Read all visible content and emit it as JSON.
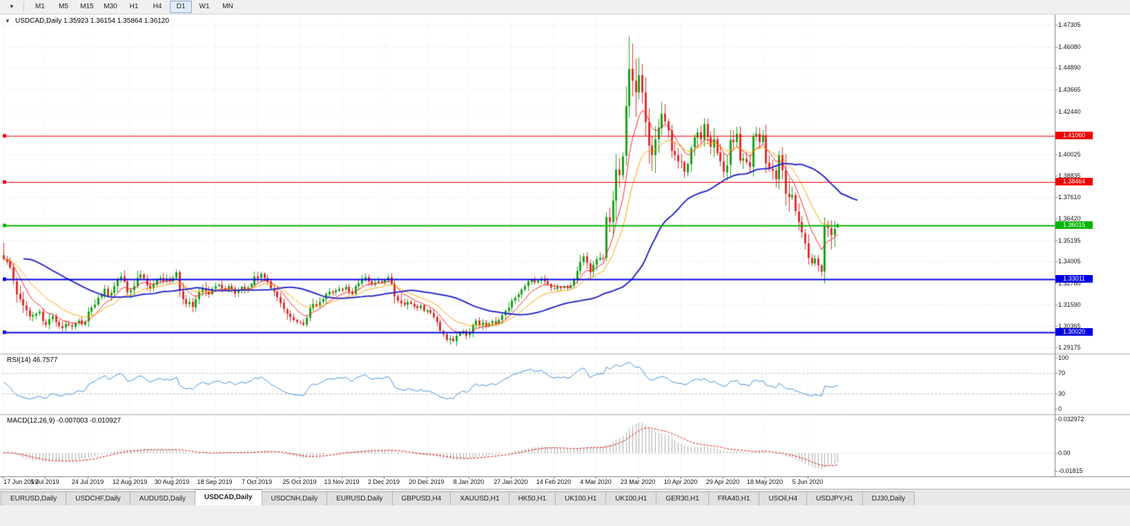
{
  "toolbar": {
    "chart_menu_icon": "▼",
    "timeframes": [
      {
        "label": "M1",
        "active": false
      },
      {
        "label": "M5",
        "active": false
      },
      {
        "label": "M15",
        "active": false
      },
      {
        "label": "M30",
        "active": false
      },
      {
        "label": "H1",
        "active": false
      },
      {
        "label": "H4",
        "active": false
      },
      {
        "label": "D1",
        "active": true
      },
      {
        "label": "W1",
        "active": false
      },
      {
        "label": "MN",
        "active": false
      }
    ]
  },
  "chart": {
    "dropdown_icon": "▼",
    "ohlc_label": "USDCAD,Daily 1.35923 1.36154 1.35864 1.36120",
    "price_ticks": [
      "1.47305",
      "1.46080",
      "1.44890",
      "1.43665",
      "1.42440",
      "1.40025",
      "1.38835",
      "1.37610",
      "1.36420",
      "1.35195",
      "1.34005",
      "1.32780",
      "1.31590",
      "1.30365",
      "1.29175"
    ],
    "date_labels": [
      "17 Jun 2019",
      "5 Jul 2019",
      "24 Jul 2019",
      "12 Aug 2019",
      "30 Aug 2019",
      "18 Sep 2019",
      "7 Oct 2019",
      "25 Oct 2019",
      "13 Nov 2019",
      "2 Dec 2019",
      "20 Dec 2019",
      "8 Jan 2020",
      "27 Jan 2020",
      "14 Feb 2020",
      "4 Mar 2020",
      "23 Mar 2020",
      "10 Apr 2020",
      "29 Apr 2020",
      "18 May 2020",
      "5 Jun 2020"
    ],
    "badges": [
      {
        "text": "1.41060",
        "color": "#f20000"
      },
      {
        "text": "1.38464",
        "color": "#f20000"
      },
      {
        "text": "1.36015",
        "color": "#00b400"
      },
      {
        "text": "1.33011",
        "color": "#0000e6"
      },
      {
        "text": "1.30020",
        "color": "#0000e6"
      }
    ]
  },
  "rsi_panel": {
    "label": "RSI(14) 46.7577",
    "ticks": [
      {
        "text": "100",
        "value": 100
      },
      {
        "text": "70",
        "value": 70
      },
      {
        "text": "30",
        "value": 30
      },
      {
        "text": "0",
        "value": 0
      }
    ]
  },
  "macd_panel": {
    "label": "MACD(12,26,9) -0.007003 -0.010927",
    "ticks": [
      {
        "text": "0.032972",
        "value": 0.032972
      },
      {
        "text": "0.00",
        "value": 0
      },
      {
        "text": "-0.01815",
        "value": -0.01815
      }
    ]
  },
  "chart_data": {
    "type": "candlestick",
    "symbol": "USDCAD",
    "timeframe": "Daily",
    "current_ohlc": {
      "open": 1.35923,
      "high": 1.36154,
      "low": 1.35864,
      "close": 1.3612
    },
    "y_axis_range": [
      1.28865,
      1.47615
    ],
    "candle_up_color": "#18a418",
    "candle_down_color": "#e03030",
    "closes": [
      1.3415,
      1.34,
      1.3365,
      1.329,
      1.3218,
      1.3188,
      1.3152,
      1.3125,
      1.3091,
      1.3098,
      1.3108,
      1.3118,
      1.3062,
      1.3046,
      1.3078,
      1.3092,
      1.306,
      1.3038,
      1.3028,
      1.3048,
      1.3042,
      1.3035,
      1.3055,
      1.3068,
      1.3048,
      1.3062,
      1.3118,
      1.3142,
      1.3158,
      1.3198,
      1.3215,
      1.3248,
      1.3208,
      1.3225,
      1.3262,
      1.33,
      1.3318,
      1.3288,
      1.3225,
      1.3238,
      1.3262,
      1.331,
      1.3328,
      1.3305,
      1.3268,
      1.3248,
      1.3272,
      1.3298,
      1.331,
      1.329,
      1.3305,
      1.3292,
      1.331,
      1.334,
      1.3235,
      1.3188,
      1.3162,
      1.3172,
      1.3145,
      1.319,
      1.3228,
      1.3252,
      1.3232,
      1.3218,
      1.3248,
      1.3262,
      1.327,
      1.3252,
      1.3235,
      1.3262,
      1.3248,
      1.3222,
      1.3238,
      1.3258,
      1.3242,
      1.3255,
      1.3272,
      1.3318,
      1.3308,
      1.3332,
      1.331,
      1.3288,
      1.3248,
      1.3232,
      1.3202,
      1.3168,
      1.3132,
      1.3108,
      1.3088,
      1.3072,
      1.3062,
      1.3058,
      1.3048,
      1.3085,
      1.3138,
      1.3162,
      1.3152,
      1.3172,
      1.3188,
      1.3218,
      1.3232,
      1.3225,
      1.3238,
      1.3248,
      1.3242,
      1.3258,
      1.3232,
      1.3218,
      1.3262,
      1.3278,
      1.3298,
      1.3312,
      1.3288,
      1.3272,
      1.3282,
      1.329,
      1.3282,
      1.3298,
      1.3312,
      1.3275,
      1.3205,
      1.3182,
      1.3168,
      1.3155,
      1.3172,
      1.3162,
      1.3148,
      1.3138,
      1.3152,
      1.3122,
      1.3128,
      1.3112,
      1.3088,
      1.3062,
      1.3012,
      1.2992,
      1.2962,
      1.2968,
      1.2952,
      1.2982,
      1.2998,
      1.3012,
      1.2985,
      1.3002,
      1.3045,
      1.3068,
      1.3042,
      1.3058,
      1.3038,
      1.3052,
      1.3065,
      1.3048,
      1.3072,
      1.3098,
      1.3122,
      1.3142,
      1.3182,
      1.3198,
      1.3215,
      1.3242,
      1.3262,
      1.3288,
      1.3298,
      1.3282,
      1.3292,
      1.3305,
      1.3288,
      1.3272,
      1.3252,
      1.3248,
      1.3258,
      1.3252,
      1.3262,
      1.3252,
      1.3268,
      1.3302,
      1.3348,
      1.3398,
      1.3428,
      1.3392,
      1.3342,
      1.3382,
      1.3412,
      1.3422,
      1.3418,
      1.3648,
      1.3622,
      1.3742,
      1.3918,
      1.3888,
      1.3992,
      1.4272,
      1.4482,
      1.4418,
      1.4352,
      1.4448,
      1.4352,
      1.4185,
      1.4052,
      1.3998,
      1.4088,
      1.4152,
      1.4232,
      1.4188,
      1.4138,
      1.4022,
      1.3998,
      1.3962,
      1.3958,
      1.3902,
      1.3948,
      1.4038,
      1.4098,
      1.4128,
      1.4088,
      1.4172,
      1.4098,
      1.4042,
      1.4088,
      1.4012,
      1.3962,
      1.3902,
      1.3942,
      1.4082,
      1.4072,
      1.4118,
      1.3968,
      1.3978,
      1.3958,
      1.3932,
      1.4102,
      1.4118,
      1.4072,
      1.4112,
      1.3955,
      1.3922,
      1.3912,
      1.3862,
      1.3998,
      1.3912,
      1.3782,
      1.3762,
      1.3772,
      1.3682,
      1.3622,
      1.3562,
      1.3502,
      1.3422,
      1.3392,
      1.3418,
      1.3378,
      1.3342,
      1.3598,
      1.3588,
      1.3548,
      1.3582,
      1.3612
    ],
    "first_open": 1.3438,
    "candle_overrides": {
      "0": {
        "h": 1.3505
      },
      "192": {
        "h": 1.4665
      },
      "195": {
        "h": 1.4545
      },
      "250": {
        "l": 1.3345
      },
      "251": {
        "l": 1.3318
      },
      "256": {
        "o": 1.35923,
        "h": 1.36154,
        "l": 1.35864,
        "c": 1.3612
      }
    },
    "moving_averages": [
      {
        "name": "fast",
        "period": 8,
        "color": "#ff2020",
        "width": 1,
        "shift": 0
      },
      {
        "name": "medium",
        "period": 17,
        "color": "#ffa500",
        "width": 1,
        "shift": 0
      },
      {
        "name": "slow",
        "period": 48,
        "color": "#2828cc",
        "width": 2,
        "shift": 6
      }
    ],
    "hlines": [
      {
        "price": 1.4106,
        "color": "#f20000",
        "width": 1
      },
      {
        "price": 1.38464,
        "color": "#f20000",
        "width": 1
      },
      {
        "price": 1.36015,
        "color": "#00b400",
        "width": 2
      },
      {
        "price": 1.33011,
        "color": "#0000e6",
        "width": 2
      },
      {
        "price": 1.3002,
        "color": "#0000e6",
        "width": 2
      }
    ],
    "indicators": {
      "rsi": {
        "period": 14,
        "current": 46.7577,
        "levels": [
          30,
          70
        ],
        "color": "#3d8fd8"
      },
      "macd": {
        "fast": 12,
        "slow": 26,
        "signal": 9,
        "current_main": -0.007003,
        "current_signal": -0.010927,
        "histogram_color": "#ababab",
        "signal_color": "#e00000",
        "axis_range": [
          -0.01815,
          0.032972
        ]
      }
    }
  },
  "tabs": [
    {
      "label": "EURUSD,Daily",
      "active": false
    },
    {
      "label": "USDCHF,Daily",
      "active": false
    },
    {
      "label": "AUDUSD,Daily",
      "active": false
    },
    {
      "label": "USDCAD,Daily",
      "active": true
    },
    {
      "label": "USDCNH,Daily",
      "active": false
    },
    {
      "label": "EURUSD,Daily",
      "active": false
    },
    {
      "label": "GBPUSD,H4",
      "active": false
    },
    {
      "label": "XAUUSD,H1",
      "active": false
    },
    {
      "label": "HK50,H1",
      "active": false
    },
    {
      "label": "UK100,H1",
      "active": false
    },
    {
      "label": "UK100,H1",
      "active": false
    },
    {
      "label": "GER30,H1",
      "active": false
    },
    {
      "label": "FRA40,H1",
      "active": false
    },
    {
      "label": "USOil,H4",
      "active": false
    },
    {
      "label": "USDJPY,H1",
      "active": false
    },
    {
      "label": "DJ30,Daily",
      "active": false
    }
  ]
}
